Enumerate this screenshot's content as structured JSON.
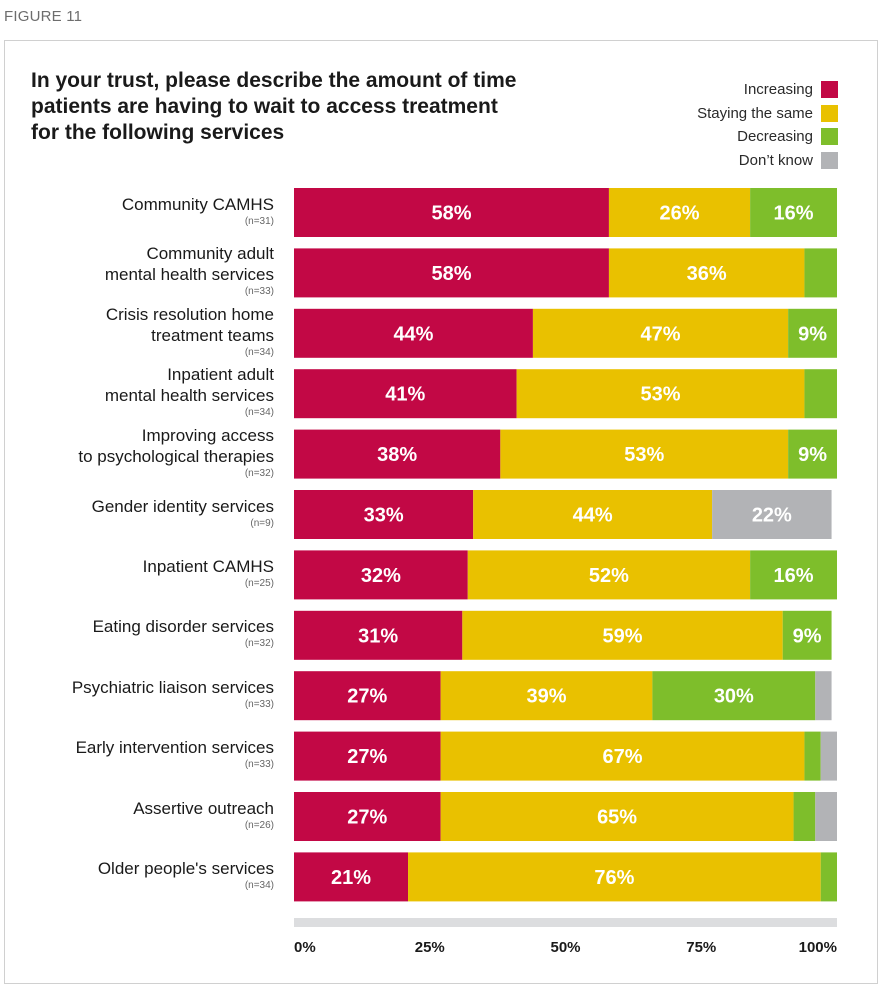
{
  "figure_label": "FIGURE 11",
  "colors": {
    "Increasing": "#c20845",
    "Staying the same": "#e9c100",
    "Decreasing": "#7ebe2b",
    "Don't know": "#b2b3b6"
  },
  "chart_data": {
    "type": "bar",
    "orientation": "horizontal",
    "stacked": true,
    "title_lines": [
      "In your trust, please describe the amount of time",
      "patients are having to wait to access treatment",
      "for the following services"
    ],
    "legend": [
      "Increasing",
      "Staying the same",
      "Decreasing",
      "Don’t know"
    ],
    "legend_position": "top-right",
    "xlim": [
      0,
      100
    ],
    "xticks": [
      "0%",
      "25%",
      "50%",
      "75%",
      "100%"
    ],
    "categories": [
      {
        "lines": [
          "Community CAMHS"
        ],
        "n": "(n=31)"
      },
      {
        "lines": [
          "Community adult",
          "mental health services"
        ],
        "n": "(n=33)"
      },
      {
        "lines": [
          "Crisis resolution home",
          "treatment teams"
        ],
        "n": "(n=34)"
      },
      {
        "lines": [
          "Inpatient adult",
          "mental health services"
        ],
        "n": "(n=34)"
      },
      {
        "lines": [
          "Improving access",
          "to psychological therapies"
        ],
        "n": "(n=32)"
      },
      {
        "lines": [
          "Gender identity services"
        ],
        "n": "(n=9)"
      },
      {
        "lines": [
          "Inpatient CAMHS"
        ],
        "n": "(n=25)"
      },
      {
        "lines": [
          "Eating disorder services"
        ],
        "n": "(n=32)"
      },
      {
        "lines": [
          "Psychiatric liaison services"
        ],
        "n": "(n=33)"
      },
      {
        "lines": [
          "Early intervention services"
        ],
        "n": "(n=33)"
      },
      {
        "lines": [
          "Assertive outreach"
        ],
        "n": "(n=26)"
      },
      {
        "lines": [
          "Older people's services"
        ],
        "n": "(n=34)"
      }
    ],
    "series": [
      {
        "name": "Increasing",
        "values": [
          58,
          58,
          44,
          41,
          38,
          33,
          32,
          31,
          27,
          27,
          27,
          21
        ],
        "labels": [
          "58%",
          "58%",
          "44%",
          "41%",
          "38%",
          "33%",
          "32%",
          "31%",
          "27%",
          "27%",
          "27%",
          "21%"
        ]
      },
      {
        "name": "Staying the same",
        "values": [
          26,
          36,
          47,
          53,
          53,
          44,
          52,
          59,
          39,
          67,
          65,
          76
        ],
        "labels": [
          "26%",
          "36%",
          "47%",
          "53%",
          "53%",
          "44%",
          "52%",
          "59%",
          "39%",
          "67%",
          "65%",
          "76%"
        ]
      },
      {
        "name": "Decreasing",
        "values": [
          16,
          6,
          9,
          6,
          9,
          0,
          16,
          9,
          30,
          3,
          4,
          3
        ],
        "labels": [
          "16%",
          "",
          "9%",
          "",
          "9%",
          "",
          "16%",
          "9%",
          "30%",
          "",
          "",
          ""
        ]
      },
      {
        "name": "Don’t know",
        "values": [
          0,
          0,
          0,
          0,
          0,
          22,
          0,
          0,
          3,
          3,
          4,
          0
        ],
        "labels": [
          "",
          "",
          "",
          "",
          "",
          "22%",
          "",
          "",
          "",
          "",
          "",
          ""
        ]
      }
    ]
  }
}
